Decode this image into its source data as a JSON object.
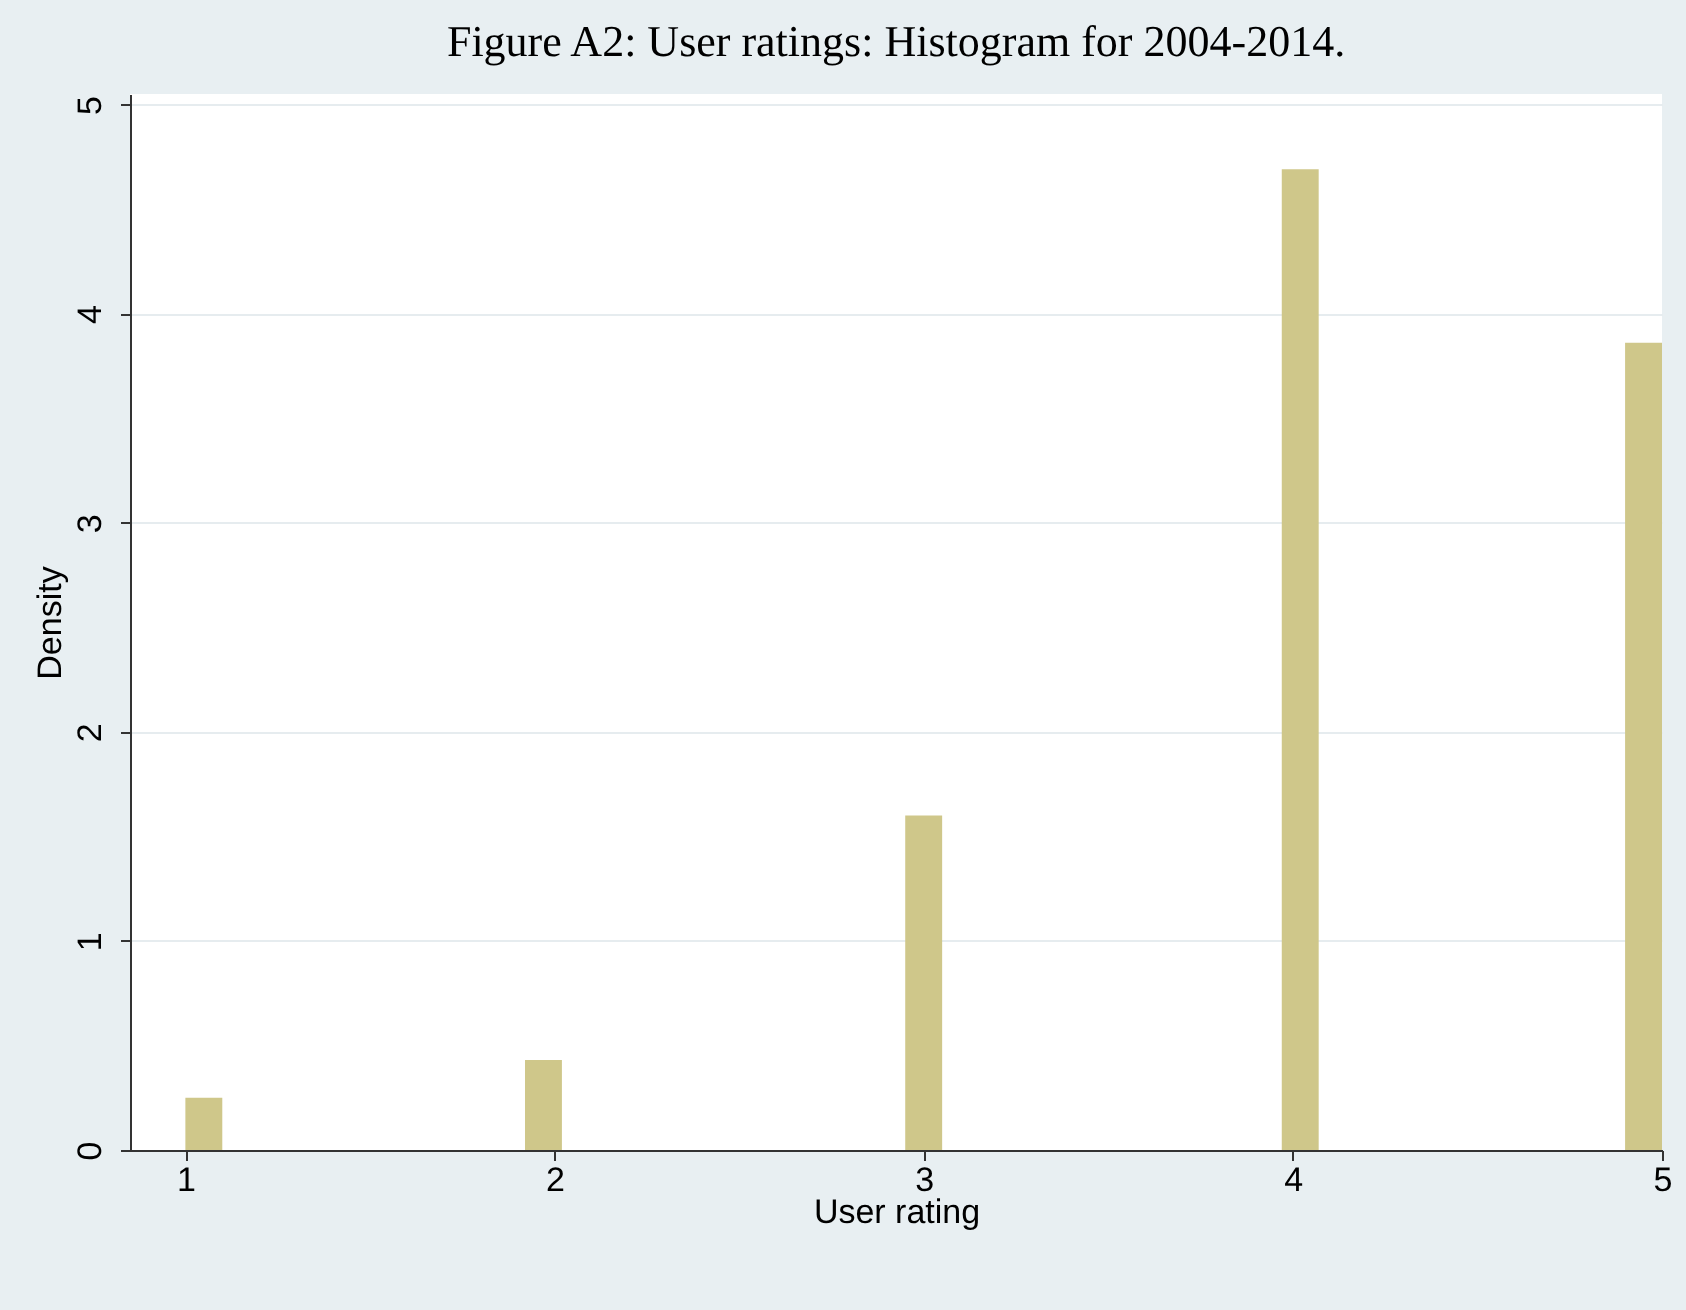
{
  "chart_data": {
    "type": "histogram",
    "title": "Figure A2: User ratings: Histogram for 2004-2014.",
    "xlabel": "User rating",
    "ylabel": "Density",
    "bins": [
      1,
      1.1,
      1.92,
      2.02,
      2.95,
      3.05,
      3.97,
      4.07,
      4.9,
      5.0
    ],
    "values": [
      0.25,
      0,
      0.43,
      0,
      1.6,
      0,
      4.69,
      0,
      3.86
    ],
    "color": "#cfc78a",
    "xlim": [
      0.85,
      5.0
    ],
    "xticks": [
      1,
      2,
      3,
      4,
      5
    ],
    "ylim": [
      0,
      5.05
    ],
    "yticks": [
      0,
      1,
      2,
      3,
      4,
      5
    ],
    "grid": "y"
  }
}
